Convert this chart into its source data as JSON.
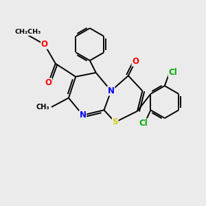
{
  "background_color": "#ebebeb",
  "atom_color_N": "#0000ff",
  "atom_color_O": "#ff0000",
  "atom_color_S": "#cccc00",
  "atom_color_Cl": "#00aa00",
  "bond_color": "#000000",
  "bond_width": 1.4,
  "figsize": [
    3.0,
    3.0
  ],
  "dpi": 100,
  "xlim": [
    0,
    10
  ],
  "ylim": [
    0,
    10
  ]
}
